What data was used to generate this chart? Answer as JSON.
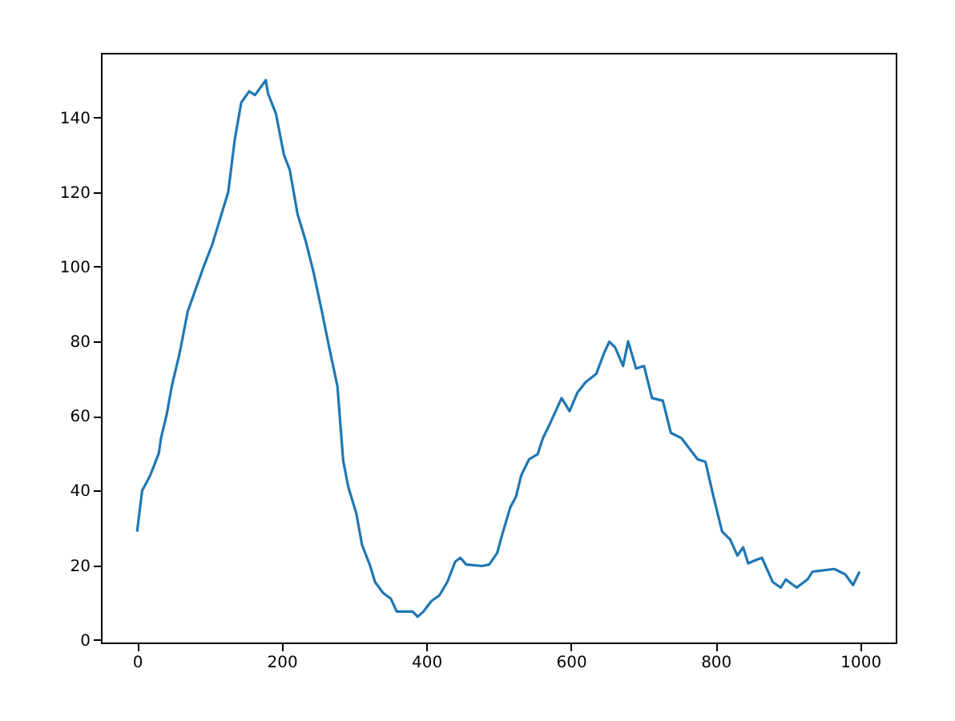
{
  "chart_data": {
    "type": "line",
    "x": [
      0,
      7,
      18,
      30,
      33,
      41,
      48,
      59,
      70,
      81,
      92,
      104,
      115,
      126,
      135,
      144,
      155,
      163,
      178,
      181,
      192,
      203,
      211,
      222,
      233,
      244,
      255,
      266,
      277,
      285,
      292,
      303,
      311,
      322,
      329,
      340,
      351,
      359,
      381,
      388,
      396,
      407,
      418,
      429,
      440,
      447,
      455,
      477,
      487,
      498,
      505,
      516,
      524,
      531,
      542,
      554,
      561,
      572,
      587,
      598,
      609,
      620,
      635,
      646,
      653,
      661,
      672,
      679,
      690,
      701,
      712,
      727,
      738,
      753,
      764,
      775,
      786,
      797,
      809,
      820,
      830,
      838,
      845,
      853,
      864,
      879,
      890,
      897,
      912,
      927,
      934,
      964,
      979,
      990,
      999
    ],
    "series": [
      {
        "color": "#1f77b4",
        "values": [
          29,
          40,
          44,
          50,
          54,
          60.5,
          68,
          77,
          88,
          94,
          100,
          106,
          113,
          120,
          134,
          144,
          147,
          146,
          150,
          146.4,
          141,
          130,
          126,
          114,
          107,
          98.5,
          88.5,
          78,
          68,
          48,
          41,
          34,
          25.5,
          20,
          15.5,
          12.6,
          11,
          7.6,
          7.6,
          6.2,
          7.6,
          10.4,
          11.9,
          15.5,
          21,
          22,
          20.2,
          19.8,
          20.2,
          23.3,
          28.3,
          35.5,
          38.4,
          44,
          48.4,
          49.8,
          54,
          58.4,
          64.8,
          61.3,
          66.3,
          69,
          71.3,
          77,
          79.9,
          78.4,
          73.4,
          80,
          72.7,
          73.4,
          64.8,
          64.1,
          55.5,
          54,
          51.2,
          48.4,
          47.7,
          38.4,
          29,
          26.9,
          22.6,
          24.8,
          20.5,
          21.2,
          22,
          15.5,
          14,
          16.2,
          14,
          16.2,
          18.3,
          19,
          17.6,
          14.7,
          18.3
        ]
      }
    ],
    "xlim": [
      -50,
      1049
    ],
    "ylim": [
      -0.7,
      157.3
    ],
    "xticks": [
      0,
      200,
      400,
      600,
      800,
      1000
    ],
    "yticks": [
      0,
      20,
      40,
      60,
      80,
      100,
      120,
      140
    ]
  }
}
